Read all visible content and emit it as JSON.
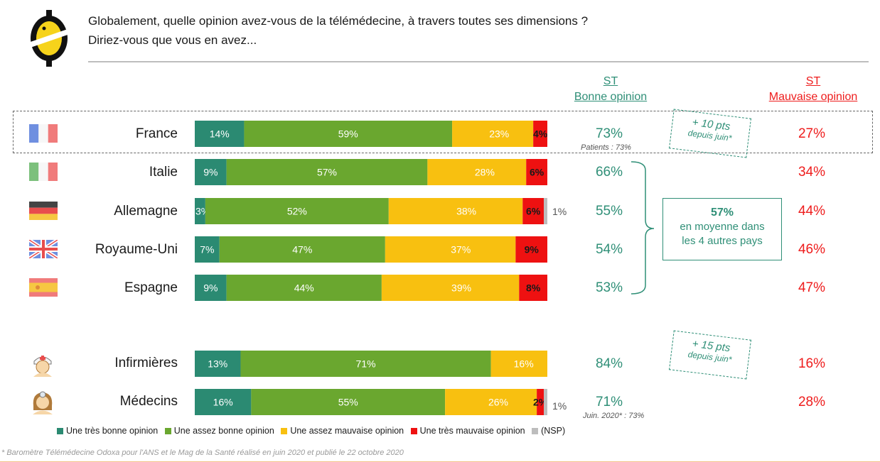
{
  "header": {
    "question_line1": "Globalement, quelle opinion avez-vous de la télémédecine, à travers toutes ses dimensions ?",
    "question_line2": "Diriez-vous que vous en avez..."
  },
  "columns": {
    "st_label": "ST",
    "bonne": "Bonne opinion",
    "mauvaise": "Mauvaise opinion"
  },
  "chart_data": {
    "type": "bar",
    "orientation": "horizontal",
    "stacked": true,
    "categories": [
      "France",
      "Italie",
      "Allemagne",
      "Royaume-Uni",
      "Espagne",
      "Infirmières",
      "Médecins"
    ],
    "series": [
      {
        "name": "Une très bonne opinion",
        "color": "#2b8a72",
        "values": [
          14,
          9,
          3,
          7,
          9,
          13,
          16
        ]
      },
      {
        "name": "Une assez bonne opinion",
        "color": "#6aa72f",
        "values": [
          59,
          57,
          52,
          47,
          44,
          71,
          55
        ]
      },
      {
        "name": "Une assez mauvaise opinion",
        "color": "#f8c010",
        "values": [
          23,
          28,
          38,
          37,
          39,
          16,
          26
        ]
      },
      {
        "name": "Une très mauvaise opinion",
        "color": "#ee1111",
        "values": [
          4,
          6,
          6,
          9,
          8,
          0,
          2
        ]
      },
      {
        "name": "(NSP)",
        "color": "#bdbdbd",
        "values": [
          0,
          0,
          1,
          0,
          0,
          0,
          1
        ]
      }
    ],
    "nsp_labels": [
      "",
      "",
      "1%",
      "",
      "",
      "",
      "1%"
    ],
    "st_bonne": [
      "73%",
      "66%",
      "55%",
      "54%",
      "53%",
      "84%",
      "71%"
    ],
    "st_mauvaise": [
      "27%",
      "34%",
      "44%",
      "46%",
      "47%",
      "16%",
      "28%"
    ]
  },
  "notes": {
    "france_patients": "Patients : 73%",
    "medecins_juin": "Juin. 2020* : 73%",
    "france_delta_big": "+ 10 pts",
    "france_delta_small": "depuis juin*",
    "infirm_delta_big": "+ 15 pts",
    "infirm_delta_small": "depuis juin*",
    "avg_value": "57%",
    "avg_line1": "en moyenne dans",
    "avg_line2": "les 4 autres pays"
  },
  "footnote": "* Baromètre Télémédecine Odoxa pour l'ANS et le Mag de la Santé réalisé en juin 2020 et publié le 22 octobre 2020",
  "icons": [
    "logo-icon",
    "flag-france-icon",
    "flag-italy-icon",
    "flag-germany-icon",
    "flag-uk-icon",
    "flag-spain-icon",
    "nurse-icon",
    "doctor-icon"
  ]
}
